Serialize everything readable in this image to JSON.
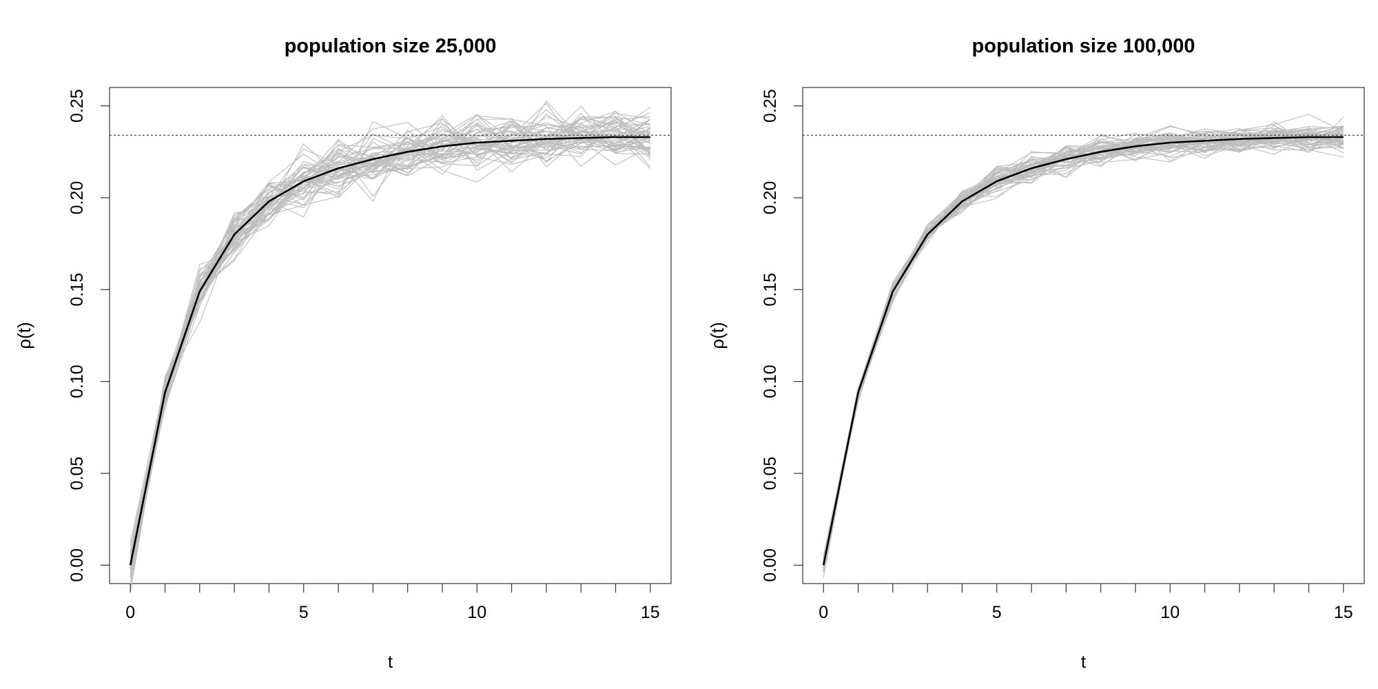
{
  "chart_data": [
    {
      "type": "line",
      "title": "population size 25,000",
      "xlabel": "t",
      "ylabel": "ρ(t)",
      "xlim": [
        -0.6,
        15.6
      ],
      "ylim": [
        -0.01,
        0.26
      ],
      "x_ticks": [
        0,
        5,
        10,
        15
      ],
      "x_minor_ticks": [
        0,
        1,
        2,
        3,
        4,
        5,
        6,
        7,
        8,
        9,
        10,
        11,
        12,
        13,
        14,
        15
      ],
      "y_ticks": [
        0.0,
        0.05,
        0.1,
        0.15,
        0.2,
        0.25
      ],
      "y_tick_labels": [
        "0.00",
        "0.05",
        "0.10",
        "0.15",
        "0.20",
        "0.25"
      ],
      "grid": false,
      "reference_line": {
        "y": 0.234,
        "style": "dotted",
        "color": "#555555"
      },
      "mean_series": {
        "color": "#000000",
        "x": [
          0,
          1,
          2,
          3,
          4,
          5,
          6,
          7,
          8,
          9,
          10,
          11,
          12,
          13,
          14,
          15
        ],
        "values": [
          0.0,
          0.094,
          0.149,
          0.18,
          0.198,
          0.209,
          0.216,
          0.221,
          0.225,
          0.228,
          0.23,
          0.231,
          0.232,
          0.2325,
          0.233,
          0.233
        ]
      },
      "simulation_runs": {
        "count": 50,
        "color": "#bdbdbd",
        "spread_sd": 0.0065
      }
    },
    {
      "type": "line",
      "title": "population size 100,000",
      "xlabel": "t",
      "ylabel": "ρ(t)",
      "xlim": [
        -0.6,
        15.6
      ],
      "ylim": [
        -0.01,
        0.26
      ],
      "x_ticks": [
        0,
        5,
        10,
        15
      ],
      "x_minor_ticks": [
        0,
        1,
        2,
        3,
        4,
        5,
        6,
        7,
        8,
        9,
        10,
        11,
        12,
        13,
        14,
        15
      ],
      "y_ticks": [
        0.0,
        0.05,
        0.1,
        0.15,
        0.2,
        0.25
      ],
      "y_tick_labels": [
        "0.00",
        "0.05",
        "0.10",
        "0.15",
        "0.20",
        "0.25"
      ],
      "grid": false,
      "reference_line": {
        "y": 0.234,
        "style": "dotted",
        "color": "#555555"
      },
      "mean_series": {
        "color": "#000000",
        "x": [
          0,
          1,
          2,
          3,
          4,
          5,
          6,
          7,
          8,
          9,
          10,
          11,
          12,
          13,
          14,
          15
        ],
        "values": [
          0.0,
          0.094,
          0.149,
          0.18,
          0.198,
          0.209,
          0.216,
          0.221,
          0.225,
          0.228,
          0.23,
          0.231,
          0.232,
          0.2325,
          0.233,
          0.233
        ]
      },
      "simulation_runs": {
        "count": 50,
        "color": "#bdbdbd",
        "spread_sd": 0.0033
      }
    }
  ]
}
